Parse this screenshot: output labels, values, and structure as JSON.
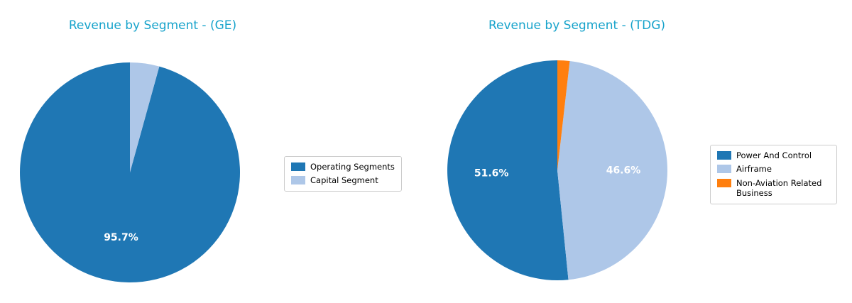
{
  "styles": {
    "title_color": "#17a3cb",
    "percent_label_color": "#ffffff",
    "legend_border_color": "#cccccc"
  },
  "chart_data": [
    {
      "type": "pie",
      "title": "Revenue by Segment - (GE)",
      "labels": [
        "Operating Segments",
        "Capital Segment"
      ],
      "values": [
        95.7,
        4.3
      ],
      "colors": [
        "#1f77b4",
        "#aec7e8"
      ],
      "pct_labels": [
        "95.7%",
        ""
      ],
      "start_angle": 90,
      "counterclock": true,
      "legend_position": "right"
    },
    {
      "type": "pie",
      "title": "Revenue by Segment - (TDG)",
      "labels": [
        "Power And Control",
        "Airframe",
        "Non-Aviation Related Business"
      ],
      "values": [
        51.6,
        46.6,
        1.8
      ],
      "colors": [
        "#1f77b4",
        "#aec7e8",
        "#ff7f0e"
      ],
      "pct_labels": [
        "51.6%",
        "46.6%",
        ""
      ],
      "start_angle": 90,
      "counterclock": true,
      "legend_position": "right"
    }
  ]
}
